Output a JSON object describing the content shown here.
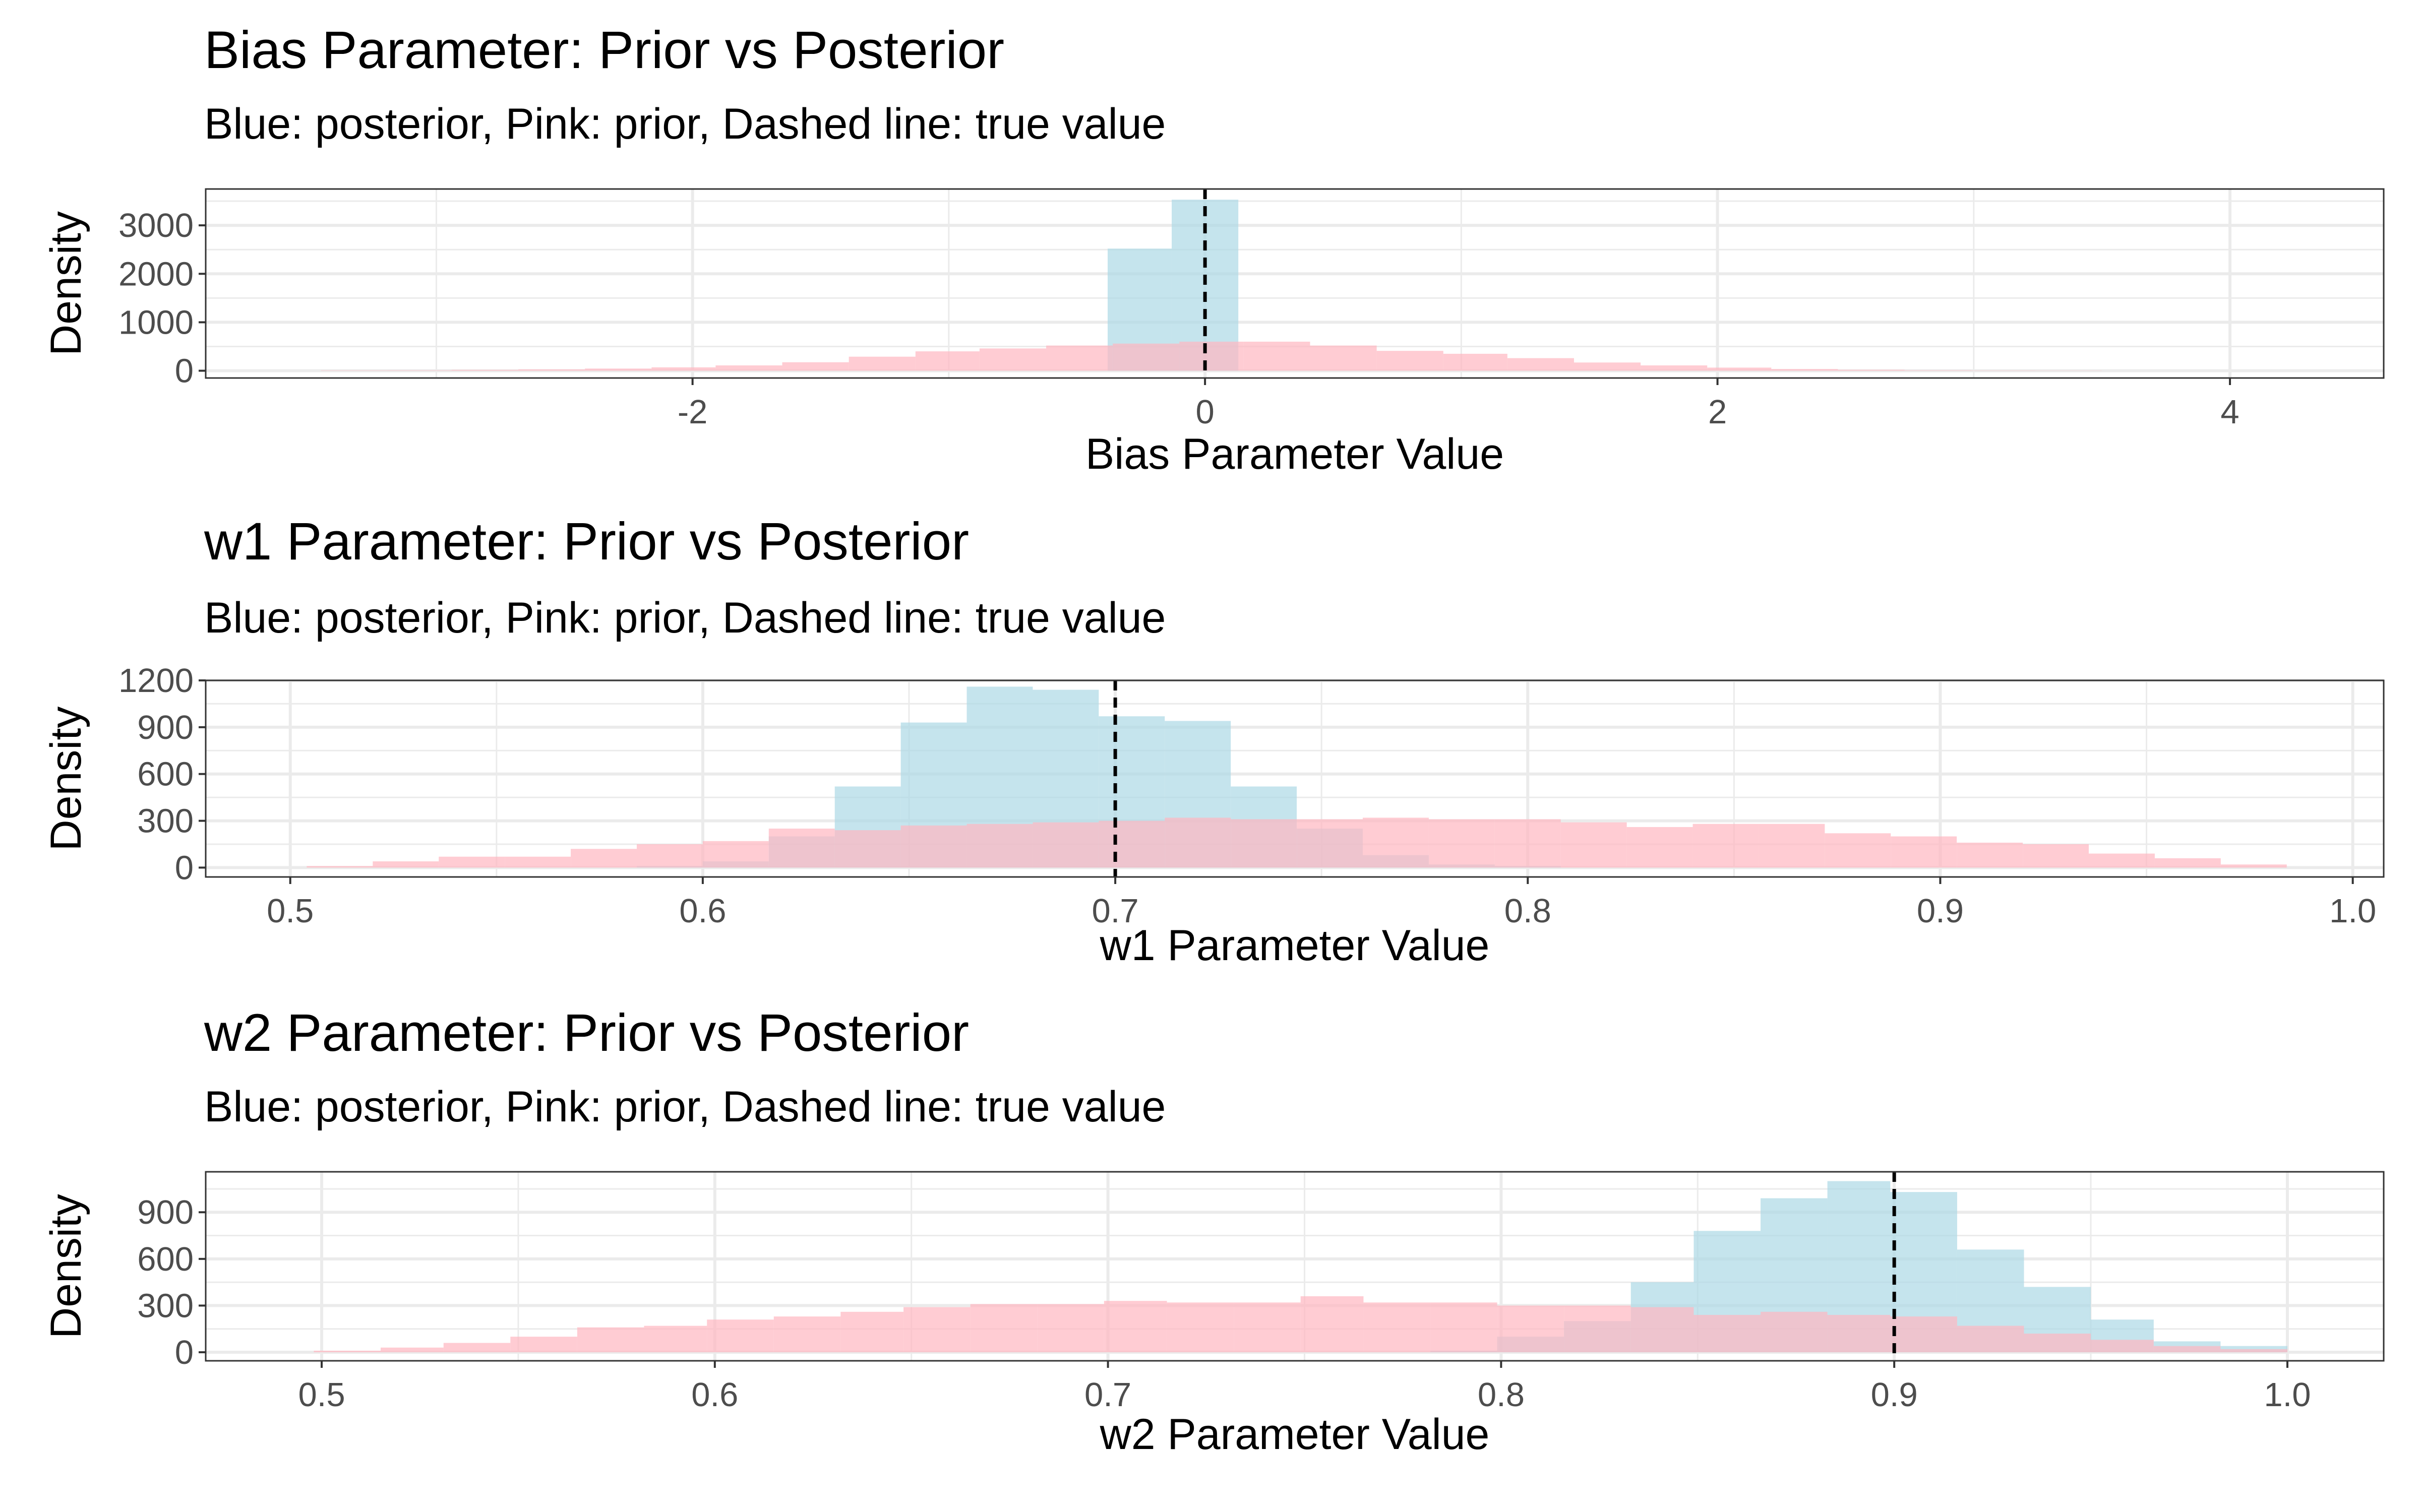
{
  "chart_data": [
    {
      "type": "histogram",
      "title": "Bias Parameter: Prior vs Posterior",
      "subtitle": "Blue: posterior, Pink: prior, Dashed line: true value",
      "xlabel": "Bias Parameter Value",
      "ylabel": "Density",
      "xlim": [
        -3.9,
        4.6
      ],
      "ylim": [
        -150,
        3750
      ],
      "xticks": [
        -2,
        0,
        2,
        4
      ],
      "xtick_labels": [
        "-2",
        "0",
        "2",
        "4"
      ],
      "yticks": [
        0,
        1000,
        2000,
        3000
      ],
      "ytick_labels": [
        "0",
        "1000",
        "2000",
        "3000"
      ],
      "true_value": 0,
      "grid": true,
      "colors": {
        "posterior": "#add8e6",
        "prior": "#ffb6c1",
        "true_line": "#000000"
      },
      "series": [
        {
          "name": "posterior",
          "bins": [
            [
              -0.38,
              -0.13,
              2520
            ],
            [
              -0.13,
              0.13,
              3530
            ]
          ]
        },
        {
          "name": "prior",
          "bins": [
            [
              -3.45,
              -3.19,
              8
            ],
            [
              -3.19,
              -2.94,
              10
            ],
            [
              -2.94,
              -2.68,
              18
            ],
            [
              -2.68,
              -2.42,
              28
            ],
            [
              -2.42,
              -2.16,
              45
            ],
            [
              -2.16,
              -1.91,
              70
            ],
            [
              -1.91,
              -1.65,
              110
            ],
            [
              -1.65,
              -1.39,
              175
            ],
            [
              -1.39,
              -1.13,
              290
            ],
            [
              -1.13,
              -0.88,
              400
            ],
            [
              -0.88,
              -0.62,
              460
            ],
            [
              -0.62,
              -0.36,
              520
            ],
            [
              -0.36,
              -0.1,
              560
            ],
            [
              -0.1,
              0.15,
              600
            ],
            [
              0.15,
              0.41,
              600
            ],
            [
              0.41,
              0.67,
              520
            ],
            [
              0.67,
              0.93,
              410
            ],
            [
              0.93,
              1.18,
              350
            ],
            [
              1.18,
              1.44,
              260
            ],
            [
              1.44,
              1.7,
              170
            ],
            [
              1.7,
              1.96,
              110
            ],
            [
              1.96,
              2.21,
              65
            ],
            [
              2.21,
              2.47,
              35
            ],
            [
              2.47,
              2.73,
              20
            ],
            [
              2.73,
              2.99,
              10
            ],
            [
              2.99,
              3.24,
              6
            ],
            [
              3.24,
              3.5,
              4
            ]
          ]
        }
      ]
    },
    {
      "type": "histogram",
      "title": "w1 Parameter: Prior vs Posterior",
      "subtitle": "Blue: posterior, Pink: prior, Dashed line: true value",
      "xlabel": "w1 Parameter Value",
      "ylabel": "Density",
      "xlim": [
        0.4795,
        1.0075
      ],
      "ylim": [
        -60,
        1200
      ],
      "xticks": [
        0.5,
        0.6,
        0.7,
        0.8,
        0.9,
        1.0
      ],
      "xtick_labels": [
        "0.5",
        "0.6",
        "0.7",
        "0.8",
        "0.9",
        "1.0"
      ],
      "yticks": [
        0,
        300,
        600,
        900,
        1200
      ],
      "ytick_labels": [
        "0",
        "300",
        "600",
        "900",
        "1200"
      ],
      "true_value": 0.7,
      "grid": true,
      "colors": {
        "posterior": "#add8e6",
        "prior": "#ffb6c1",
        "true_line": "#000000"
      },
      "series": [
        {
          "name": "posterior",
          "bins": [
            [
              0.584,
              0.6,
              10
            ],
            [
              0.6,
              0.616,
              40
            ],
            [
              0.616,
              0.632,
              200
            ],
            [
              0.632,
              0.648,
              520
            ],
            [
              0.648,
              0.664,
              930
            ],
            [
              0.664,
              0.68,
              1160
            ],
            [
              0.68,
              0.696,
              1140
            ],
            [
              0.696,
              0.712,
              970
            ],
            [
              0.712,
              0.728,
              940
            ],
            [
              0.728,
              0.744,
              520
            ],
            [
              0.744,
              0.76,
              250
            ],
            [
              0.76,
              0.776,
              80
            ],
            [
              0.776,
              0.792,
              20
            ],
            [
              0.792,
              0.808,
              10
            ]
          ]
        },
        {
          "name": "prior",
          "bins": [
            [
              0.504,
              0.52,
              10
            ],
            [
              0.52,
              0.536,
              40
            ],
            [
              0.536,
              0.552,
              70
            ],
            [
              0.552,
              0.568,
              70
            ],
            [
              0.568,
              0.584,
              120
            ],
            [
              0.584,
              0.6,
              150
            ],
            [
              0.6,
              0.616,
              170
            ],
            [
              0.616,
              0.632,
              250
            ],
            [
              0.632,
              0.648,
              240
            ],
            [
              0.648,
              0.664,
              270
            ],
            [
              0.664,
              0.68,
              280
            ],
            [
              0.68,
              0.696,
              290
            ],
            [
              0.696,
              0.712,
              300
            ],
            [
              0.712,
              0.728,
              320
            ],
            [
              0.728,
              0.744,
              310
            ],
            [
              0.744,
              0.76,
              310
            ],
            [
              0.76,
              0.776,
              320
            ],
            [
              0.776,
              0.792,
              310
            ],
            [
              0.792,
              0.808,
              310
            ],
            [
              0.808,
              0.824,
              290
            ],
            [
              0.824,
              0.84,
              260
            ],
            [
              0.84,
              0.856,
              280
            ],
            [
              0.856,
              0.872,
              280
            ],
            [
              0.872,
              0.888,
              220
            ],
            [
              0.888,
              0.904,
              200
            ],
            [
              0.904,
              0.92,
              160
            ],
            [
              0.92,
              0.936,
              150
            ],
            [
              0.936,
              0.952,
              90
            ],
            [
              0.952,
              0.968,
              60
            ],
            [
              0.968,
              0.984,
              20
            ]
          ]
        }
      ]
    },
    {
      "type": "histogram",
      "title": "w2 Parameter: Prior vs Posterior",
      "subtitle": "Blue: posterior, Pink: prior, Dashed line: true value",
      "xlabel": "w2 Parameter Value",
      "ylabel": "Density",
      "xlim": [
        0.4705,
        1.0245
      ],
      "ylim": [
        -55,
        1160
      ],
      "xticks": [
        0.5,
        0.6,
        0.7,
        0.8,
        0.9,
        1.0
      ],
      "xtick_labels": [
        "0.5",
        "0.6",
        "0.7",
        "0.8",
        "0.9",
        "1.0"
      ],
      "yticks": [
        0,
        300,
        600,
        900
      ],
      "ytick_labels": [
        "0",
        "300",
        "600",
        "900"
      ],
      "true_value": 0.9,
      "grid": true,
      "colors": {
        "posterior": "#add8e6",
        "prior": "#ffb6c1",
        "true_line": "#000000"
      },
      "series": [
        {
          "name": "posterior",
          "bins": [
            [
              0.782,
              0.799,
              10
            ],
            [
              0.799,
              0.816,
              100
            ],
            [
              0.816,
              0.833,
              200
            ],
            [
              0.833,
              0.849,
              450
            ],
            [
              0.849,
              0.866,
              780
            ],
            [
              0.866,
              0.883,
              990
            ],
            [
              0.883,
              0.899,
              1100
            ],
            [
              0.899,
              0.916,
              1030
            ],
            [
              0.916,
              0.933,
              660
            ],
            [
              0.933,
              0.95,
              420
            ],
            [
              0.95,
              0.966,
              210
            ],
            [
              0.966,
              0.983,
              70
            ],
            [
              0.983,
              1.0,
              40
            ]
          ]
        },
        {
          "name": "prior",
          "bins": [
            [
              0.498,
              0.515,
              10
            ],
            [
              0.515,
              0.531,
              30
            ],
            [
              0.531,
              0.548,
              60
            ],
            [
              0.548,
              0.565,
              100
            ],
            [
              0.565,
              0.582,
              160
            ],
            [
              0.582,
              0.598,
              170
            ],
            [
              0.598,
              0.615,
              210
            ],
            [
              0.615,
              0.632,
              230
            ],
            [
              0.632,
              0.648,
              260
            ],
            [
              0.648,
              0.665,
              290
            ],
            [
              0.665,
              0.682,
              310
            ],
            [
              0.682,
              0.699,
              310
            ],
            [
              0.699,
              0.715,
              330
            ],
            [
              0.715,
              0.732,
              320
            ],
            [
              0.732,
              0.749,
              320
            ],
            [
              0.749,
              0.765,
              360
            ],
            [
              0.765,
              0.782,
              320
            ],
            [
              0.782,
              0.799,
              320
            ],
            [
              0.799,
              0.816,
              300
            ],
            [
              0.816,
              0.833,
              300
            ],
            [
              0.833,
              0.849,
              290
            ],
            [
              0.849,
              0.866,
              240
            ],
            [
              0.866,
              0.883,
              260
            ],
            [
              0.883,
              0.899,
              240
            ],
            [
              0.899,
              0.916,
              230
            ],
            [
              0.916,
              0.933,
              170
            ],
            [
              0.933,
              0.95,
              120
            ],
            [
              0.95,
              0.966,
              80
            ],
            [
              0.966,
              0.983,
              40
            ],
            [
              0.983,
              1.0,
              20
            ]
          ]
        }
      ]
    }
  ]
}
